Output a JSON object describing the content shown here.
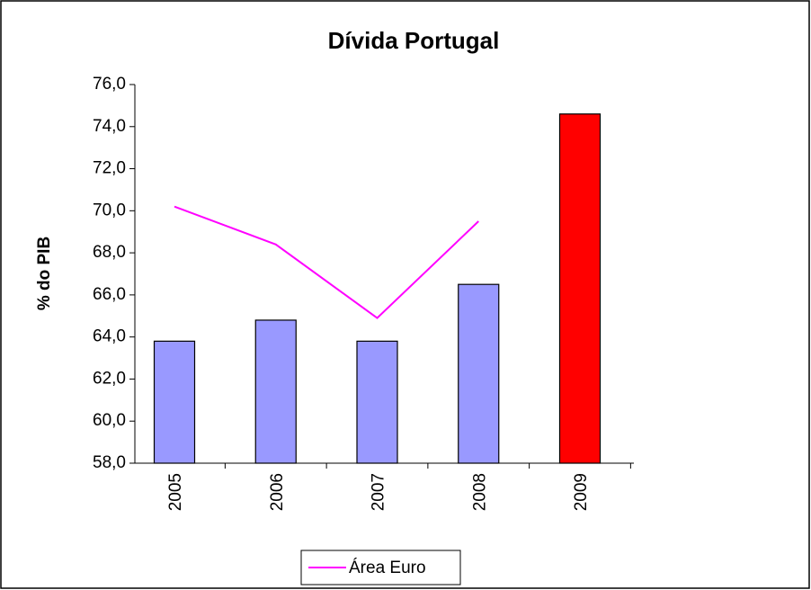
{
  "chart_data": {
    "type": "bar",
    "title": "Dívida Portugal",
    "y_label": "% do PIB",
    "categories": [
      "2005",
      "2006",
      "2007",
      "2008",
      "2009"
    ],
    "series": [
      {
        "type": "bar",
        "colors": [
          "#9999ff",
          "#9999ff",
          "#9999ff",
          "#9999ff",
          "#ff0000"
        ],
        "values": [
          63.8,
          64.8,
          63.8,
          66.5,
          74.6
        ]
      },
      {
        "type": "line",
        "name": "Área Euro",
        "color": "#ff00ff",
        "values": [
          70.2,
          68.4,
          64.9,
          69.5,
          null
        ]
      }
    ],
    "ylim": [
      58,
      76
    ],
    "yticks": [
      {
        "value": 58,
        "label": "58,0"
      },
      {
        "value": 60,
        "label": "60,0"
      },
      {
        "value": 62,
        "label": "62,0"
      },
      {
        "value": 64,
        "label": "64,0"
      },
      {
        "value": 66,
        "label": "66,0"
      },
      {
        "value": 68,
        "label": "68,0"
      },
      {
        "value": 70,
        "label": "70,0"
      },
      {
        "value": 72,
        "label": "72,0"
      },
      {
        "value": 74,
        "label": "74,0"
      },
      {
        "value": 76,
        "label": "76,0"
      }
    ],
    "legend": "bottom"
  }
}
